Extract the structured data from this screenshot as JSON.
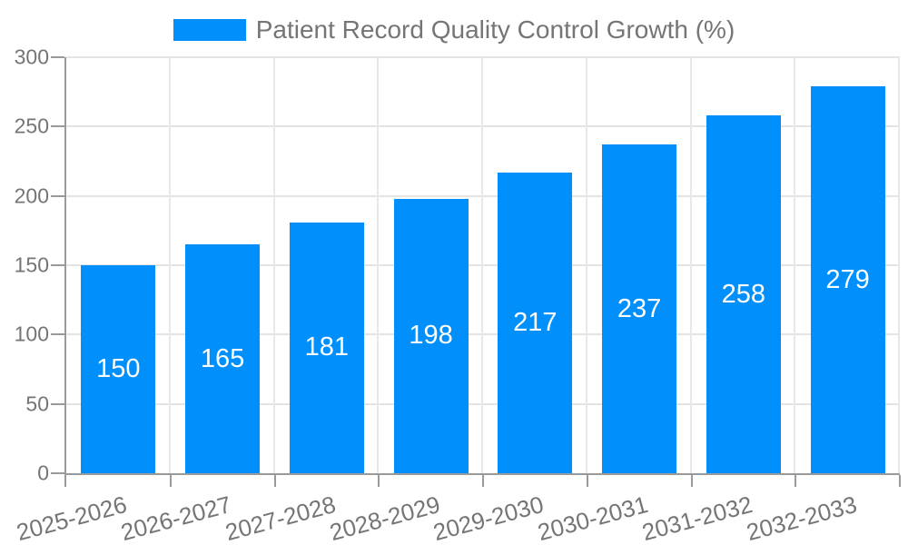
{
  "chart_data": {
    "type": "bar",
    "legend": "Patient Record Quality Control Growth (%)",
    "legend_position": "top-center",
    "categories": [
      "2025-2026",
      "2026-2027",
      "2027-2028",
      "2028-2029",
      "2029-2030",
      "2030-2031",
      "2031-2032",
      "2032-2033"
    ],
    "values": [
      150,
      165,
      181,
      198,
      217,
      237,
      258,
      279
    ],
    "ylim": [
      0,
      300
    ],
    "yticks": [
      0,
      50,
      100,
      150,
      200,
      250,
      300
    ],
    "xlabel": "",
    "ylabel": "",
    "grid": true,
    "data_labels": "inside-center",
    "x_label_rotation_deg": -15,
    "colors": {
      "bar": "#008FFB",
      "data_label": "#FFFFFF",
      "axis_text": "#757575",
      "axis_line": "#9A9A9A",
      "gridline": "#E4E4E4",
      "background": "#FFFFFF"
    }
  }
}
